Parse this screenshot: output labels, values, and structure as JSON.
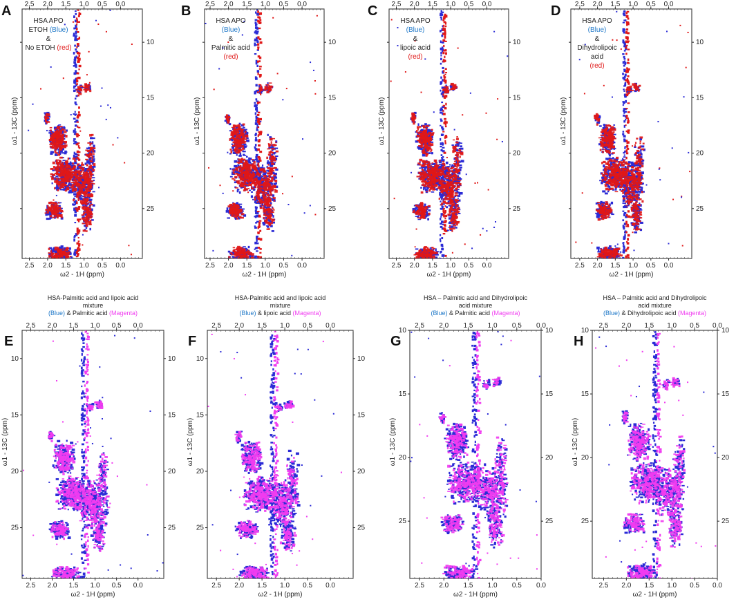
{
  "figure": "HSA methyl region 1H-13C HSQC overlays",
  "colors": {
    "blue": "#2b2bd6",
    "red": "#e01818",
    "magenta": "#f03cf0",
    "legend_blue": "#1f78c8"
  },
  "chart_data": [
    {
      "label": "A",
      "type": "scatter",
      "x_label": "ω2 - 1H (ppm)",
      "y_label": "ω1 - 13C (ppm)",
      "x_ticks_top": [
        "2,5",
        "2,0",
        "1,5",
        "1,0",
        "0,5",
        "0,0"
      ],
      "x_ticks_bottom": [
        "2.5",
        "2.0",
        "1.5",
        "1.0",
        "0.5",
        "0.0"
      ],
      "y_ticks": [
        "10",
        "15",
        "20",
        "25"
      ],
      "legend_lines": [
        {
          "text": "HSA APO",
          "color": "#222222"
        },
        {
          "text": "ETOH ",
          "color": "#222222",
          "tail": "(Blue)",
          "tail_color": "#1f78c8"
        },
        {
          "text": "&",
          "color": "#222222"
        },
        {
          "text": "No ETOH ",
          "color": "#222222",
          "tail": "(red)",
          "tail_color": "#e01818"
        }
      ],
      "series": [
        {
          "name": "ETOH",
          "color": "blue"
        },
        {
          "name": "No ETOH",
          "color": "red"
        }
      ]
    },
    {
      "label": "B",
      "type": "scatter",
      "x_label": "ω2 - 1H (ppm)",
      "y_label": "ω1 - 13C (ppm)",
      "x_ticks_top": [
        "2,5",
        "2,0",
        "1,5",
        "1,0",
        "0,5",
        "0,0"
      ],
      "x_ticks_bottom": [
        "2.5",
        "2.0",
        "1.5",
        "1.0",
        "0.5",
        "0.0"
      ],
      "y_ticks": [
        "10",
        "15",
        "20",
        "25"
      ],
      "legend_lines": [
        {
          "text": "HSA APO",
          "color": "#222222"
        },
        {
          "text": "(Blue)",
          "color": "#1f78c8"
        },
        {
          "text": "&",
          "color": "#222222"
        },
        {
          "text": "Palmitic acid",
          "color": "#222222"
        },
        {
          "text": "(red)",
          "color": "#e01818"
        }
      ],
      "series": [
        {
          "name": "HSA APO",
          "color": "blue"
        },
        {
          "name": "Palmitic acid",
          "color": "red"
        }
      ]
    },
    {
      "label": "C",
      "type": "scatter",
      "x_label": "ω2 - 1H (ppm)",
      "y_label": "ω1 - 13C (ppm)",
      "x_ticks_top": [
        "2,5",
        "2,0",
        "1,5",
        "1,0",
        "0,5",
        "0,0"
      ],
      "x_ticks_bottom": [
        "2.5",
        "2.0",
        "1.5",
        "1.0",
        "0.5",
        "0.0"
      ],
      "y_ticks": [
        "10",
        "15",
        "20",
        "25"
      ],
      "legend_lines": [
        {
          "text": "HSA APO",
          "color": "#222222"
        },
        {
          "text": "(Blue)",
          "color": "#1f78c8"
        },
        {
          "text": "&",
          "color": "#222222"
        },
        {
          "text": "lipoic acid",
          "color": "#222222"
        },
        {
          "text": "(red)",
          "color": "#e01818"
        }
      ],
      "series": [
        {
          "name": "HSA APO",
          "color": "blue"
        },
        {
          "name": "lipoic acid",
          "color": "red"
        }
      ]
    },
    {
      "label": "D",
      "type": "scatter",
      "x_label": "ω2 - 1H (ppm)",
      "y_label": "ω1 - 13C (ppm)",
      "x_ticks_top": [
        "2,5",
        "2,0",
        "1,5",
        "1,0",
        "0,5",
        "0,0"
      ],
      "x_ticks_bottom": [
        "2.5",
        "2.0",
        "1.5",
        "1.0",
        "0.5",
        "0.0"
      ],
      "y_ticks": [
        "10",
        "15",
        "20",
        "25"
      ],
      "legend_lines": [
        {
          "text": "HSA APO",
          "color": "#222222"
        },
        {
          "text": "(Blue)",
          "color": "#1f78c8"
        },
        {
          "text": "&",
          "color": "#222222"
        },
        {
          "text": "Dihydrolipoic",
          "color": "#222222"
        },
        {
          "text": "acid",
          "color": "#222222"
        },
        {
          "text": "(red)",
          "color": "#e01818"
        }
      ],
      "series": [
        {
          "name": "HSA APO",
          "color": "blue"
        },
        {
          "name": "Dihydrolipoic acid",
          "color": "red"
        }
      ]
    },
    {
      "label": "E",
      "type": "scatter",
      "title_lines": [
        {
          "text": "HSA-Palmitic acid and lipoic acid"
        },
        {
          "text": "mixture"
        },
        {
          "parts": [
            {
              "text": "(Blue)",
              "color": "#1f78c8"
            },
            {
              "text": " & Palmitic acid ",
              "color": "#222222"
            },
            {
              "text": "(Magenta)",
              "color": "#f03cf0"
            }
          ]
        }
      ],
      "x_label": "ω2 - 1H (ppm)",
      "y_label": "ω1 - 13C (ppm)",
      "x_ticks_top": [
        "2.5",
        "2.0",
        "1.5",
        "1.0",
        "0.5",
        "0.0"
      ],
      "x_ticks_bottom": [
        "2.5",
        "2.0",
        "1.5",
        "1.0",
        "0.5",
        "0.0"
      ],
      "y_ticks": [
        "10",
        "15",
        "20",
        "25"
      ],
      "series": [
        {
          "name": "Mixture",
          "color": "blue"
        },
        {
          "name": "Palmitic acid",
          "color": "magenta"
        }
      ]
    },
    {
      "label": "F",
      "type": "scatter",
      "title_lines": [
        {
          "text": "HSA-Palmitic acid and lipoic acid"
        },
        {
          "text": "mixture"
        },
        {
          "parts": [
            {
              "text": "(Blue)",
              "color": "#1f78c8"
            },
            {
              "text": " & lipoic acid ",
              "color": "#222222"
            },
            {
              "text": "(Magenta)",
              "color": "#f03cf0"
            }
          ]
        }
      ],
      "x_label": "ω2 - 1H (ppm)",
      "y_label": "ω1 - 13C (ppm)",
      "x_ticks_top": [
        "2.5",
        "2.0",
        "1.5",
        "1.0",
        "0.5",
        "0.0"
      ],
      "x_ticks_bottom": [
        "2.5",
        "2.0",
        "1.5",
        "1.0",
        "0.5",
        "0.0"
      ],
      "y_ticks": [
        "10",
        "15",
        "20",
        "25"
      ],
      "series": [
        {
          "name": "Mixture",
          "color": "blue"
        },
        {
          "name": "lipoic acid",
          "color": "magenta"
        }
      ]
    },
    {
      "label": "G",
      "type": "scatter",
      "title_lines": [
        {
          "text": "HSA – Palmitic acid and Dihydrolipoic"
        },
        {
          "text": "acid mixture"
        },
        {
          "parts": [
            {
              "text": "(Blue)",
              "color": "#1f78c8"
            },
            {
              "text": " & Palmitic acid ",
              "color": "#222222"
            },
            {
              "text": "(Magenta)",
              "color": "#f03cf0"
            }
          ]
        }
      ],
      "x_label": "ω2 - 1H (ppm)",
      "y_label": "ω1 - 13C (ppm)",
      "x_ticks_top": [
        "2.5",
        "2.0",
        "1.5",
        "1.0",
        "0.5",
        "0.0"
      ],
      "x_ticks_bottom": [
        "2.5",
        "2.0",
        "1.5",
        "1.0",
        "0.5",
        "0.0"
      ],
      "y_ticks": [
        "10",
        "15",
        "20",
        "25"
      ],
      "series": [
        {
          "name": "Mixture",
          "color": "blue"
        },
        {
          "name": "Palmitic acid",
          "color": "magenta"
        }
      ]
    },
    {
      "label": "H",
      "type": "scatter",
      "title_lines": [
        {
          "text": "HSA – Palmitic acid and Dihydrolipoic"
        },
        {
          "text": "acid mixture"
        },
        {
          "parts": [
            {
              "text": "(Blue)",
              "color": "#1f78c8"
            },
            {
              "text": " & Dihydrolipoic acid ",
              "color": "#222222"
            },
            {
              "text": "(Magenta)",
              "color": "#f03cf0"
            }
          ]
        }
      ],
      "x_label": "ω2 - 1H (ppm)",
      "y_label": "ω1 - 13C (ppm)",
      "x_ticks_top": [
        "2.5",
        "2.0",
        "1.5",
        "1.0",
        "0.5",
        "0.0"
      ],
      "x_ticks_bottom": [
        "2.5",
        "2.0",
        "1.5",
        "1.0",
        "0.5",
        "0.0"
      ],
      "y_ticks": [
        "10",
        "15",
        "20",
        "25"
      ],
      "series": [
        {
          "name": "Mixture",
          "color": "blue"
        },
        {
          "name": "Dihydrolipoic acid",
          "color": "magenta"
        }
      ]
    }
  ]
}
